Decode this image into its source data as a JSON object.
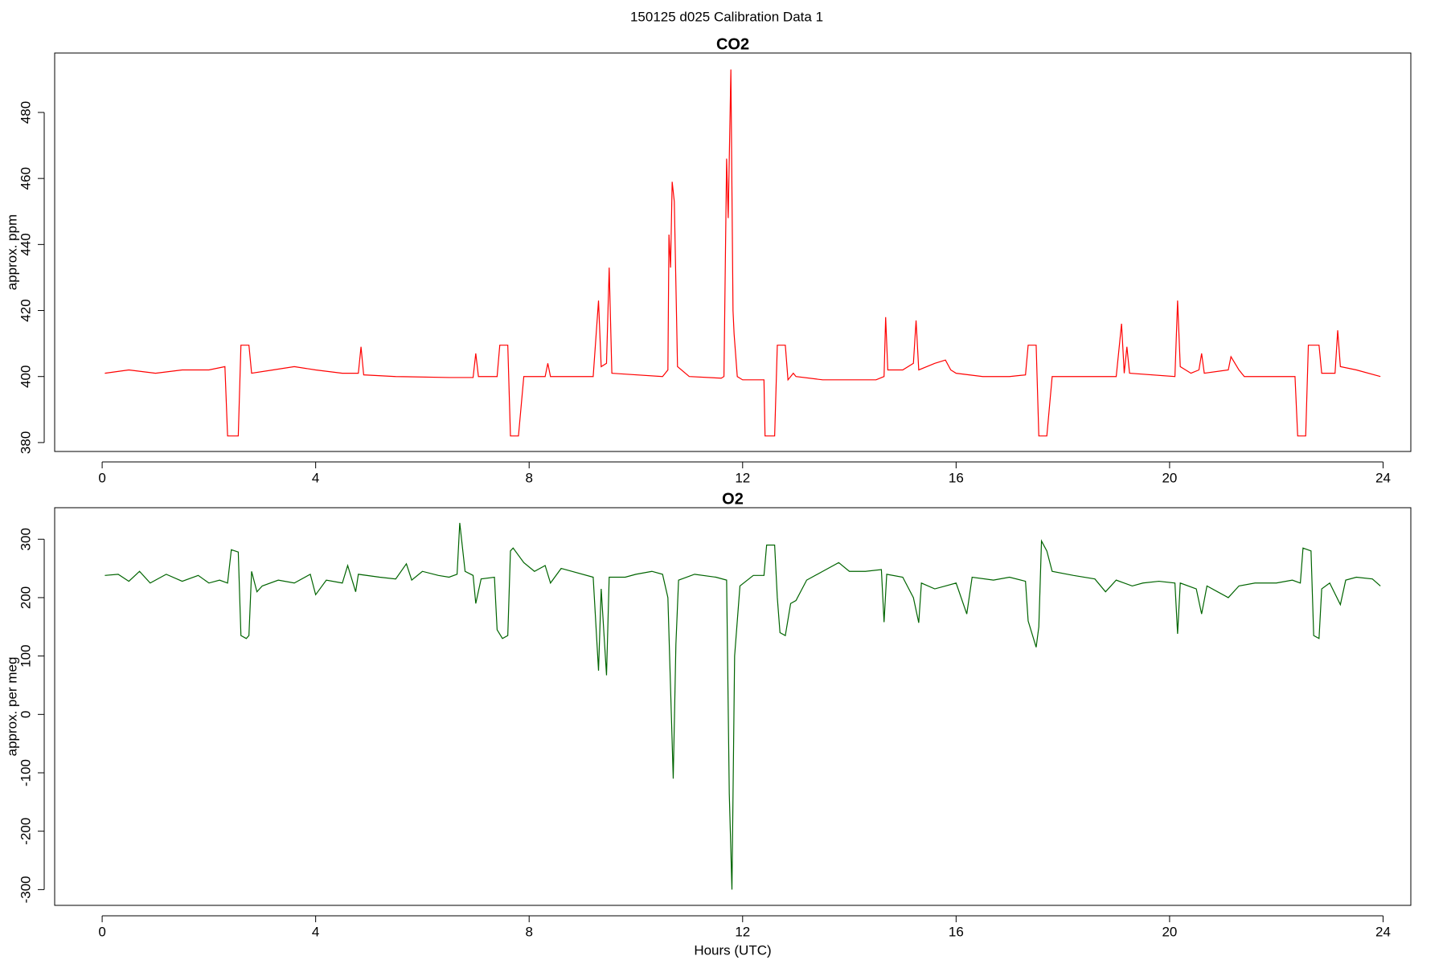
{
  "title": "150125   d025   Calibration Data 1",
  "chart_data": [
    {
      "type": "line",
      "title": "CO2",
      "ylabel": "approx. ppm",
      "color": "#ff0000",
      "xlim": [
        -0.89,
        24.52
      ],
      "ylim": [
        377.3,
        498
      ],
      "xticks": [
        0,
        4,
        8,
        12,
        16,
        20,
        24
      ],
      "yticks": [
        380,
        400,
        420,
        440,
        460,
        480
      ],
      "x": [
        0.05,
        0.5,
        1.0,
        1.5,
        2.0,
        2.3,
        2.35,
        2.55,
        2.6,
        2.75,
        2.8,
        3.2,
        3.6,
        4.0,
        4.5,
        4.8,
        4.85,
        4.9,
        5.5,
        6.5,
        6.95,
        7.0,
        7.05,
        7.4,
        7.45,
        7.6,
        7.65,
        7.8,
        7.9,
        8.3,
        8.35,
        8.4,
        9.2,
        9.3,
        9.35,
        9.45,
        9.5,
        9.55,
        10.5,
        10.6,
        10.62,
        10.65,
        10.68,
        10.72,
        10.78,
        11.0,
        11.6,
        11.65,
        11.7,
        11.73,
        11.78,
        11.82,
        11.84,
        11.9,
        12.0,
        12.4,
        12.42,
        12.6,
        12.65,
        12.8,
        12.85,
        12.95,
        13.0,
        13.5,
        14.5,
        14.65,
        14.68,
        14.72,
        15.0,
        15.2,
        15.25,
        15.3,
        15.6,
        15.8,
        15.9,
        16.0,
        16.5,
        17.0,
        17.3,
        17.35,
        17.5,
        17.55,
        17.7,
        17.8,
        19.0,
        19.1,
        19.15,
        19.2,
        19.25,
        20.1,
        20.15,
        20.2,
        20.4,
        20.55,
        20.6,
        20.65,
        21.1,
        21.15,
        21.3,
        21.4,
        22.3,
        22.35,
        22.4,
        22.55,
        22.6,
        22.8,
        22.85,
        23.1,
        23.15,
        23.2,
        23.5,
        23.95
      ],
      "values": [
        401,
        402,
        401,
        402,
        402,
        403,
        382,
        382,
        409.5,
        409.5,
        401,
        402,
        403,
        402,
        401,
        401,
        409,
        400.5,
        400,
        399.7,
        399.7,
        407,
        400,
        400,
        409.5,
        409.5,
        382,
        382,
        400,
        400,
        404,
        400,
        400,
        423,
        403,
        404,
        433,
        401,
        400,
        402,
        443,
        433,
        459,
        453,
        403,
        400,
        399.5,
        400,
        466,
        448,
        493,
        420,
        413,
        400,
        399,
        399,
        382,
        382,
        409.5,
        409.5,
        399,
        401,
        400,
        399,
        399,
        400,
        418,
        402,
        402,
        404,
        417,
        402,
        404,
        405,
        402,
        401,
        400,
        400,
        400.5,
        409.5,
        409.5,
        382,
        382,
        400,
        400,
        416,
        401,
        409,
        401,
        400,
        423,
        403,
        401,
        402,
        407,
        401,
        402,
        406,
        402,
        400,
        400,
        400,
        382,
        382,
        409.5,
        409.5,
        401,
        401,
        414,
        403,
        402,
        400
      ]
    },
    {
      "type": "line",
      "title": "O2",
      "ylabel": "approx. per meg",
      "xlabel": "Hours (UTC)",
      "color": "#006400",
      "xlim": [
        -0.89,
        24.52
      ],
      "ylim": [
        -327,
        354
      ],
      "xticks": [
        0,
        4,
        8,
        12,
        16,
        20,
        24
      ],
      "yticks": [
        -300,
        -200,
        -100,
        0,
        100,
        200,
        300
      ],
      "x": [
        0.05,
        0.3,
        0.5,
        0.7,
        0.9,
        1.2,
        1.5,
        1.8,
        2.0,
        2.2,
        2.35,
        2.42,
        2.55,
        2.6,
        2.7,
        2.75,
        2.8,
        2.9,
        3.0,
        3.3,
        3.6,
        3.9,
        4.0,
        4.2,
        4.5,
        4.6,
        4.75,
        4.8,
        5.2,
        5.5,
        5.7,
        5.8,
        6.0,
        6.3,
        6.5,
        6.65,
        6.7,
        6.8,
        6.95,
        7.0,
        7.1,
        7.35,
        7.4,
        7.5,
        7.6,
        7.65,
        7.7,
        7.9,
        8.1,
        8.3,
        8.4,
        8.6,
        8.8,
        9.2,
        9.3,
        9.35,
        9.45,
        9.5,
        9.8,
        10.0,
        10.3,
        10.5,
        10.6,
        10.7,
        10.75,
        10.8,
        11.1,
        11.5,
        11.7,
        11.75,
        11.8,
        11.85,
        11.95,
        12.2,
        12.4,
        12.45,
        12.6,
        12.65,
        12.7,
        12.8,
        12.9,
        13.0,
        13.2,
        13.5,
        13.8,
        14.0,
        14.3,
        14.6,
        14.65,
        14.7,
        15.0,
        15.2,
        15.3,
        15.35,
        15.6,
        15.8,
        16.0,
        16.2,
        16.3,
        16.7,
        17.0,
        17.3,
        17.35,
        17.5,
        17.55,
        17.6,
        17.7,
        17.8,
        18.2,
        18.6,
        18.8,
        19.0,
        19.3,
        19.5,
        19.8,
        20.1,
        20.15,
        20.2,
        20.5,
        20.6,
        20.7,
        20.9,
        21.1,
        21.3,
        21.6,
        22.0,
        22.3,
        22.45,
        22.5,
        22.65,
        22.7,
        22.8,
        22.85,
        23.0,
        23.2,
        23.3,
        23.5,
        23.8,
        23.95
      ],
      "values": [
        238,
        240,
        228,
        245,
        225,
        240,
        228,
        238,
        225,
        230,
        225,
        282,
        278,
        135,
        130,
        135,
        245,
        210,
        220,
        230,
        225,
        240,
        205,
        230,
        225,
        255,
        210,
        240,
        235,
        232,
        258,
        230,
        245,
        238,
        235,
        240,
        328,
        245,
        238,
        190,
        232,
        235,
        145,
        130,
        135,
        280,
        285,
        260,
        245,
        255,
        225,
        250,
        245,
        235,
        75,
        215,
        67,
        235,
        235,
        240,
        245,
        240,
        200,
        -110,
        120,
        230,
        240,
        235,
        230,
        -135,
        -300,
        100,
        220,
        238,
        238,
        290,
        290,
        200,
        140,
        135,
        190,
        195,
        230,
        245,
        260,
        245,
        245,
        248,
        158,
        240,
        235,
        200,
        157,
        225,
        215,
        220,
        225,
        172,
        235,
        230,
        235,
        228,
        160,
        115,
        150,
        297,
        280,
        245,
        238,
        232,
        210,
        230,
        220,
        225,
        228,
        225,
        138,
        225,
        215,
        172,
        220,
        210,
        200,
        220,
        225,
        225,
        230,
        225,
        285,
        280,
        135,
        130,
        215,
        225,
        188,
        230,
        235,
        232,
        220
      ]
    }
  ]
}
